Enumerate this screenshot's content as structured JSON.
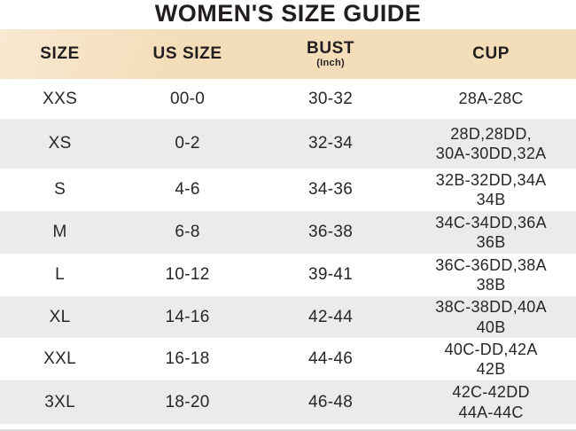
{
  "title": "WOMEN'S SIZE GUIDE",
  "table": {
    "columns": [
      {
        "label": "SIZE",
        "sub": ""
      },
      {
        "label": "US SIZE",
        "sub": ""
      },
      {
        "label": "BUST",
        "sub": "(Inch)"
      },
      {
        "label": "CUP",
        "sub": ""
      }
    ],
    "rows": [
      {
        "size": "XXS",
        "us_size": "00-0",
        "bust": "30-32",
        "cup": "28A-28C"
      },
      {
        "size": "XS",
        "us_size": "0-2",
        "bust": "32-34",
        "cup": "28D,28DD,\n30A-30DD,32A"
      },
      {
        "size": "S",
        "us_size": "4-6",
        "bust": "34-36",
        "cup": "32B-32DD,34A\n34B"
      },
      {
        "size": "M",
        "us_size": "6-8",
        "bust": "36-38",
        "cup": "34C-34DD,36A\n36B"
      },
      {
        "size": "L",
        "us_size": "10-12",
        "bust": "39-41",
        "cup": "36C-36DD,38A\n38B"
      },
      {
        "size": "XL",
        "us_size": "14-16",
        "bust": "42-44",
        "cup": "38C-38DD,40A\n40B"
      },
      {
        "size": "XXL",
        "us_size": "16-18",
        "bust": "44-46",
        "cup": "40C-DD,42A\n42B"
      },
      {
        "size": "3XL",
        "us_size": "18-20",
        "bust": "46-48",
        "cup": "42C-42DD\n44A-44C"
      }
    ]
  },
  "colors": {
    "header_bg": "#f4ddb9",
    "header_bg_highlight": "#f8e9d2",
    "row_bg": "#ffffff",
    "row_alt_bg": "#ebebeb",
    "text": "#2a2627",
    "title_text": "#221e1f",
    "bottom_line": "#dcdcdc"
  }
}
